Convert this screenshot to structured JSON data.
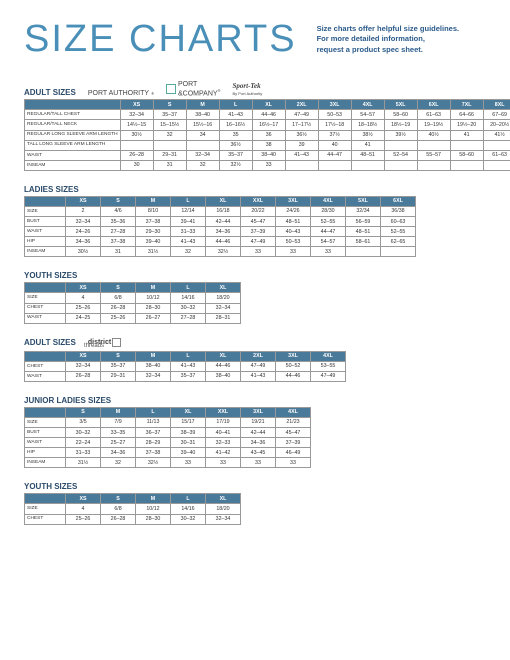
{
  "title": "SIZE CHARTS",
  "subtitle1": "Size charts offer helpful size guidelines.",
  "subtitle2": "For more detailed information,",
  "subtitle3": "request a product spec sheet.",
  "brands": {
    "pa": "PORT AUTHORITY",
    "pc1": "PORT",
    "pc2": "&COMPANY",
    "st": "Sport-Tek",
    "stby": "By Port Authority",
    "dt": "district",
    "dt2": "threads"
  },
  "sections": {
    "adult": "ADULT SIZES",
    "ladies": "LADIES SIZES",
    "youth": "YOUTH SIZES",
    "adult2": "ADULT SIZES",
    "junior": "JUNIOR LADIES SIZES",
    "youth2": "YOUTH SIZES"
  },
  "adult": {
    "cols": [
      "XS",
      "S",
      "M",
      "L",
      "XL",
      "2XL",
      "3XL",
      "4XL",
      "5XL",
      "6XL",
      "7XL",
      "8XL",
      "9XL",
      "10XL"
    ],
    "rows": [
      {
        "label": "REGULAR/TALL CHEST",
        "v": [
          "32–34",
          "35–37",
          "38–40",
          "41–43",
          "44–46",
          "47–49",
          "50–53",
          "54–57",
          "58–60",
          "61–63",
          "64–66",
          "67–69",
          "70–72",
          "73–75"
        ]
      },
      {
        "label": "REGULAR/TALL NECK",
        "v": [
          "14½–15",
          "15–15½",
          "15½–16",
          "16–16½",
          "16½–17",
          "17–17½",
          "17½–18",
          "18–18½",
          "18½–19",
          "19–19½",
          "19½–20",
          "20–20½",
          "20½–21",
          "21–21½"
        ]
      },
      {
        "label": "REGULAR LONG SLEEVE ARM LENGTH",
        "v": [
          "30½",
          "32",
          "34",
          "35",
          "36",
          "36½",
          "37½",
          "38½",
          "39½",
          "40½",
          "41",
          "41½",
          "41½",
          "41½"
        ]
      },
      {
        "label": "TALL LONG SLEEVE ARM LENGTH",
        "v": [
          "",
          "",
          "",
          "36½",
          "38",
          "39",
          "40",
          "41",
          "",
          "",
          "",
          "",
          "",
          ""
        ]
      },
      {
        "label": "WAIST",
        "v": [
          "26–28",
          "29–31",
          "32–34",
          "35–37",
          "38–40",
          "41–43",
          "44–47",
          "48–51",
          "52–54",
          "55–57",
          "58–60",
          "61–63",
          "64–66",
          "67–69"
        ]
      },
      {
        "label": "INSEAM",
        "v": [
          "30",
          "31",
          "32",
          "32½",
          "33",
          "",
          "",
          "",
          "",
          "",
          "",
          "",
          "",
          ""
        ]
      }
    ]
  },
  "ladies": {
    "cols": [
      "XS",
      "S",
      "M",
      "L",
      "XL",
      "XXL",
      "3XL",
      "4XL",
      "5XL",
      "6XL"
    ],
    "rows": [
      {
        "label": "SIZE",
        "v": [
          "2",
          "4/6",
          "8/10",
          "12/14",
          "16/18",
          "20/22",
          "24/26",
          "28/30",
          "32/34",
          "36/38"
        ]
      },
      {
        "label": "BUST",
        "v": [
          "32–34",
          "35–36",
          "37–38",
          "39–41",
          "42–44",
          "45–47",
          "48–51",
          "52–55",
          "56–59",
          "60–63"
        ]
      },
      {
        "label": "WAIST",
        "v": [
          "24–26",
          "27–28",
          "29–30",
          "31–33",
          "34–36",
          "37–39",
          "40–43",
          "44–47",
          "48–51",
          "52–55"
        ]
      },
      {
        "label": "HIP",
        "v": [
          "34–36",
          "37–38",
          "39–40",
          "41–43",
          "44–46",
          "47–49",
          "50–53",
          "54–57",
          "58–61",
          "62–65"
        ]
      },
      {
        "label": "INSEAM",
        "v": [
          "30½",
          "31",
          "31½",
          "32",
          "32½",
          "33",
          "33",
          "33",
          "",
          ""
        ]
      }
    ]
  },
  "youth": {
    "cols": [
      "XS",
      "S",
      "M",
      "L",
      "XL"
    ],
    "rows": [
      {
        "label": "SIZE",
        "v": [
          "4",
          "6/8",
          "10/12",
          "14/16",
          "18/20"
        ]
      },
      {
        "label": "CHEST",
        "v": [
          "25–26",
          "26–28",
          "28–30",
          "30–32",
          "32–34"
        ]
      },
      {
        "label": "WAIST",
        "v": [
          "24–25",
          "25–26",
          "26–27",
          "27–28",
          "28–31"
        ]
      }
    ]
  },
  "adult2": {
    "cols": [
      "XS",
      "S",
      "M",
      "L",
      "XL",
      "2XL",
      "3XL",
      "4XL"
    ],
    "rows": [
      {
        "label": "CHEST",
        "v": [
          "32–34",
          "35–37",
          "38–40",
          "41–43",
          "44–46",
          "47–49",
          "50–52",
          "53–55"
        ]
      },
      {
        "label": "WAIST",
        "v": [
          "26–28",
          "29–31",
          "32–34",
          "35–37",
          "38–40",
          "41–43",
          "44–46",
          "47–49"
        ]
      }
    ]
  },
  "junior": {
    "cols": [
      "S",
      "M",
      "L",
      "XL",
      "XXL",
      "3XL",
      "4XL"
    ],
    "rows": [
      {
        "label": "SIZE",
        "v": [
          "3/5",
          "7/9",
          "11/13",
          "15/17",
          "17/19",
          "19/21",
          "21/23"
        ]
      },
      {
        "label": "BUST",
        "v": [
          "30–32",
          "33–35",
          "36–37",
          "38–39",
          "40–41",
          "42–44",
          "45–47"
        ]
      },
      {
        "label": "WAIST",
        "v": [
          "22–24",
          "25–27",
          "28–29",
          "30–31",
          "32–33",
          "34–36",
          "37–39"
        ]
      },
      {
        "label": "HIP",
        "v": [
          "31–33",
          "34–36",
          "37–38",
          "39–40",
          "41–42",
          "43–45",
          "46–49"
        ]
      },
      {
        "label": "INSEAM",
        "v": [
          "31½",
          "32",
          "32½",
          "33",
          "33",
          "33",
          "33"
        ]
      }
    ]
  },
  "youth2": {
    "cols": [
      "XS",
      "S",
      "M",
      "L",
      "XL"
    ],
    "rows": [
      {
        "label": "SIZE",
        "v": [
          "4",
          "6/8",
          "10/12",
          "14/16",
          "18/20"
        ]
      },
      {
        "label": "CHEST",
        "v": [
          "25–26",
          "26–28",
          "28–30",
          "30–32",
          "32–34"
        ]
      }
    ]
  }
}
